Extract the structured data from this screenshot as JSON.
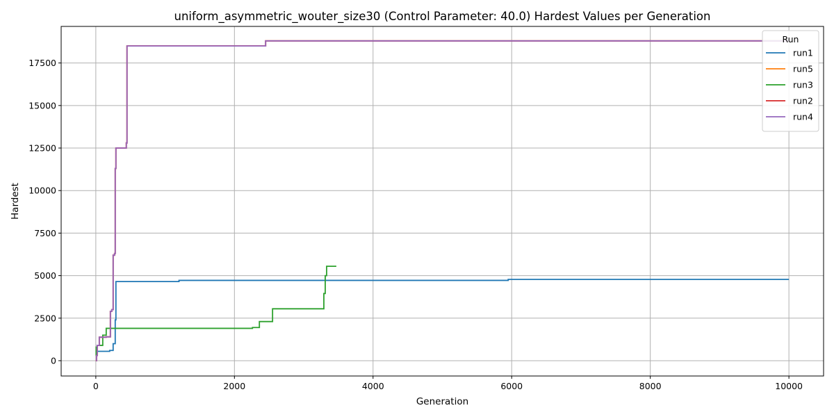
{
  "chart_data": {
    "type": "line",
    "title": "uniform_asymmetric_wouter_size30 (Control Parameter: 40.0) Hardest Values per Generation",
    "xlabel": "Generation",
    "ylabel": "Hardest",
    "xlim": [
      -500,
      10500
    ],
    "ylim": [
      -900,
      19650
    ],
    "xticks": [
      0,
      2000,
      4000,
      6000,
      8000,
      10000
    ],
    "yticks": [
      0,
      2500,
      5000,
      7500,
      10000,
      12500,
      15000,
      17500
    ],
    "grid": true,
    "step": true,
    "legend": {
      "title": "Run",
      "position": "top-right"
    },
    "series": [
      {
        "name": "run1",
        "color": "#1f77b4",
        "x": [
          0,
          5,
          200,
          250,
          280,
          290,
          300,
          1200,
          5950,
          10000
        ],
        "y": [
          500,
          550,
          600,
          1000,
          2400,
          4650,
          4650,
          4720,
          4780,
          4780
        ]
      },
      {
        "name": "run5",
        "color": "#ff7f0e",
        "x": [
          0,
          10,
          20,
          50,
          150,
          210,
          230,
          250,
          270,
          280,
          290,
          440,
          450,
          2450,
          10000
        ],
        "y": [
          0,
          300,
          900,
          1380,
          1400,
          2900,
          3000,
          6200,
          6300,
          11300,
          12500,
          12800,
          18500,
          18800,
          18800
        ]
      },
      {
        "name": "run3",
        "color": "#2ca02c",
        "x": [
          0,
          5,
          20,
          100,
          150,
          200,
          2260,
          2360,
          2550,
          3290,
          3310,
          3330,
          3470
        ],
        "y": [
          300,
          800,
          900,
          1500,
          1900,
          1900,
          1950,
          2300,
          3050,
          3950,
          5000,
          5550,
          5550
        ]
      },
      {
        "name": "run2",
        "color": "#d62728",
        "x": [
          0,
          10,
          20,
          50,
          150,
          210,
          230,
          250,
          270,
          280,
          290,
          440,
          450,
          2450,
          10000
        ],
        "y": [
          0,
          300,
          900,
          1380,
          1400,
          2900,
          3000,
          6200,
          6300,
          11300,
          12500,
          12800,
          18500,
          18800,
          18800
        ]
      },
      {
        "name": "run4",
        "color": "#9467bd",
        "x": [
          0,
          10,
          20,
          50,
          150,
          210,
          230,
          250,
          270,
          280,
          290,
          440,
          450,
          2450,
          10000
        ],
        "y": [
          0,
          300,
          900,
          1380,
          1400,
          2900,
          3000,
          6200,
          6300,
          11300,
          12500,
          12800,
          18500,
          18800,
          18800
        ]
      }
    ]
  }
}
